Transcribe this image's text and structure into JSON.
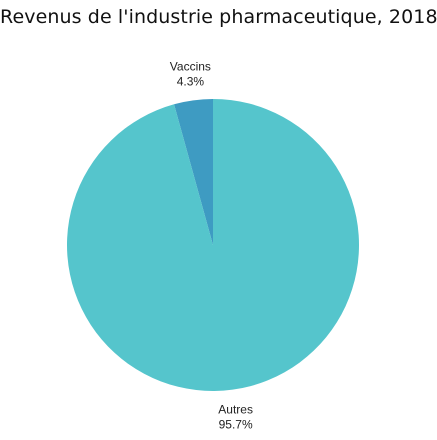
{
  "chart_data": {
    "type": "pie",
    "title": "Revenus de l'industrie pharmaceutique, 2018",
    "slices": [
      {
        "label": "Vaccins",
        "value": 4.3,
        "value_label": "4.3%",
        "color": "#3e9bc2"
      },
      {
        "label": "Autres",
        "value": 95.7,
        "value_label": "95.7%",
        "color": "#55c5cc"
      }
    ],
    "start_angle_deg": 0,
    "direction": "counterclockwise",
    "legend": "none"
  }
}
